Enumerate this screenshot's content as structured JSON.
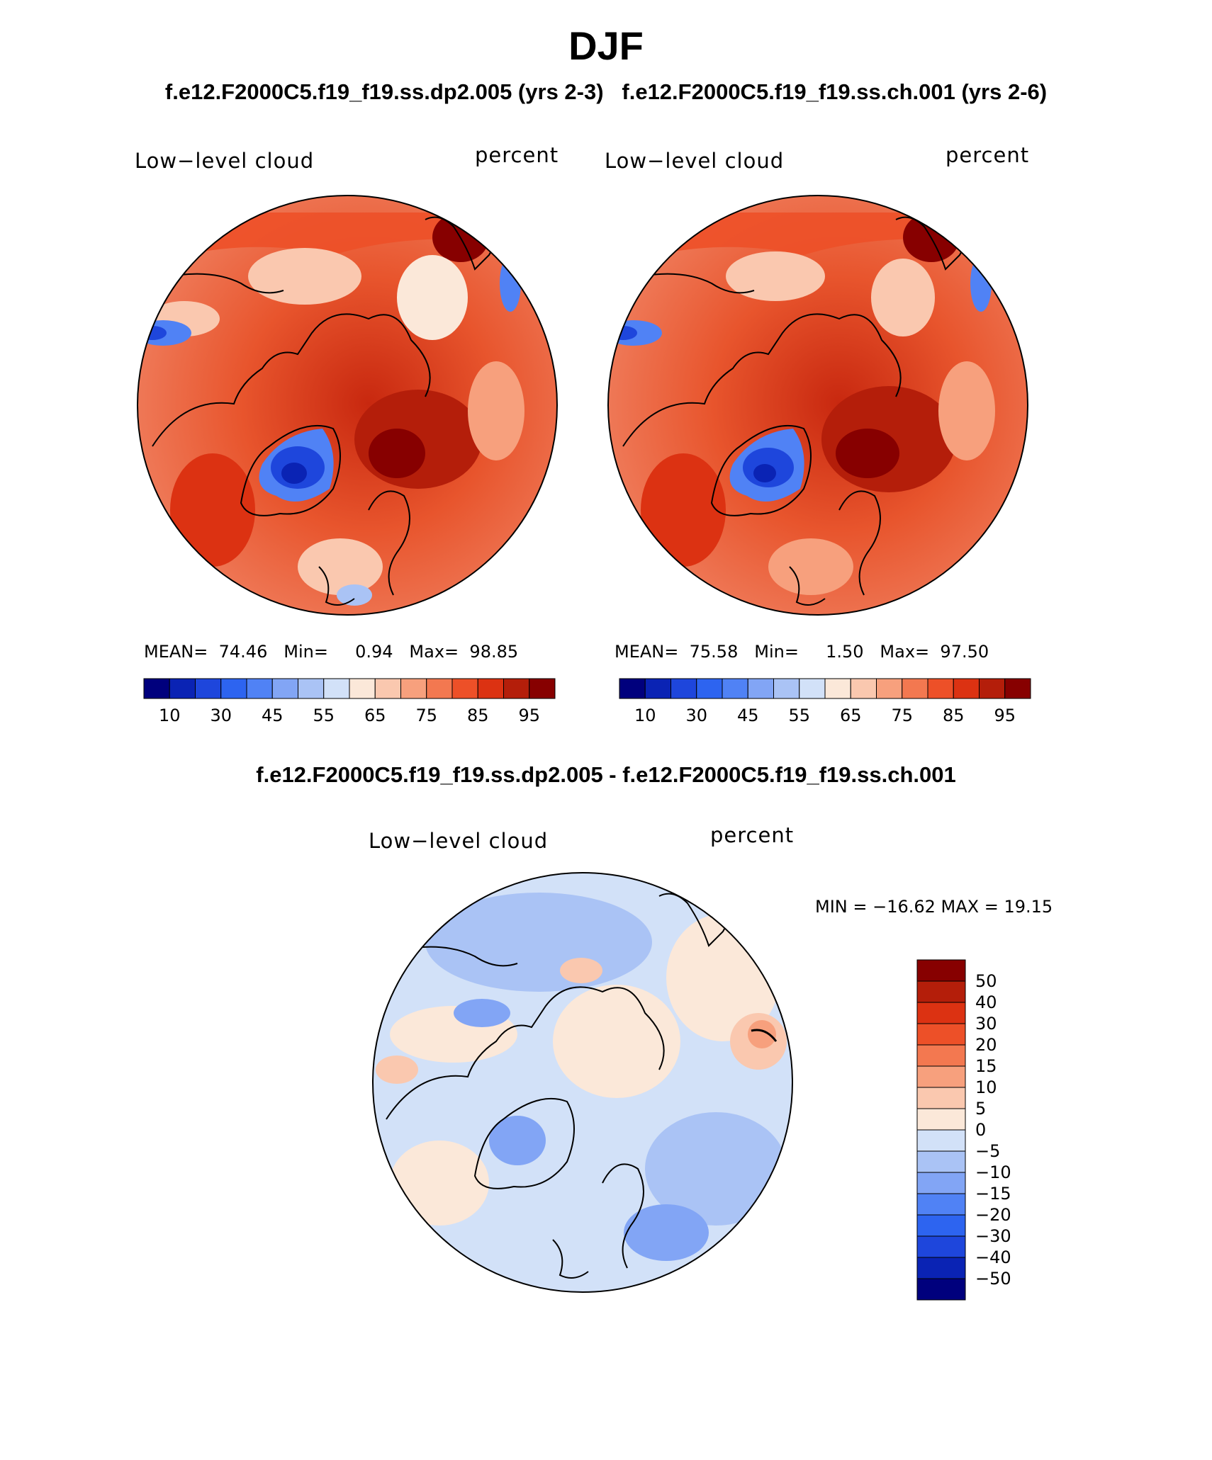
{
  "season": "DJF",
  "case_titles": {
    "left": "f.e12.F2000C5.f19_f19.ss.dp2.005 (yrs 2-3)",
    "right": "f.e12.F2000C5.f19_f19.ss.ch.001 (yrs 2-6)"
  },
  "diff_title": "f.e12.F2000C5.f19_f19.ss.dp2.005 - f.e12.F2000C5.f19_f19.ss.ch.001",
  "panels": [
    {
      "variable": "Low−level cloud",
      "units": "percent",
      "mean_label": "MEAN=",
      "mean": "74.46",
      "min_label": "Min=",
      "min": "0.94",
      "max_label": "Max=",
      "max": "98.85"
    },
    {
      "variable": "Low−level cloud",
      "units": "percent",
      "mean_label": "MEAN=",
      "mean": "75.58",
      "min_label": "Min=",
      "min": "1.50",
      "max_label": "Max=",
      "max": "97.50"
    }
  ],
  "diff_panel": {
    "variable": "Low−level cloud",
    "units": "percent",
    "stats": "MIN = −16.62 MAX =   19.15"
  },
  "colorbar_abs": {
    "ticks": [
      "10",
      "30",
      "45",
      "55",
      "65",
      "75",
      "85",
      "95"
    ],
    "colors": [
      "#00007d",
      "#0a23b4",
      "#1e46dc",
      "#2d64f0",
      "#5082f5",
      "#82a5f5",
      "#aac3f5",
      "#d2e1f8",
      "#fbe8d9",
      "#fac8af",
      "#f7a07d",
      "#f37850",
      "#ed5028",
      "#dc3212",
      "#b41e0a",
      "#870000"
    ]
  },
  "colorbar_diff": {
    "ticks": [
      "50",
      "40",
      "30",
      "20",
      "15",
      "10",
      "5",
      "0",
      "−5",
      "−10",
      "−15",
      "−20",
      "−30",
      "−40",
      "−50"
    ],
    "colors": [
      "#870000",
      "#b41e0a",
      "#dc3212",
      "#ed5028",
      "#f37850",
      "#f7a07d",
      "#fac8af",
      "#fbe8d9",
      "#d2e1f8",
      "#aac3f5",
      "#82a5f5",
      "#5082f5",
      "#2d64f0",
      "#1e46dc",
      "#0a23b4",
      "#00007d"
    ]
  }
}
